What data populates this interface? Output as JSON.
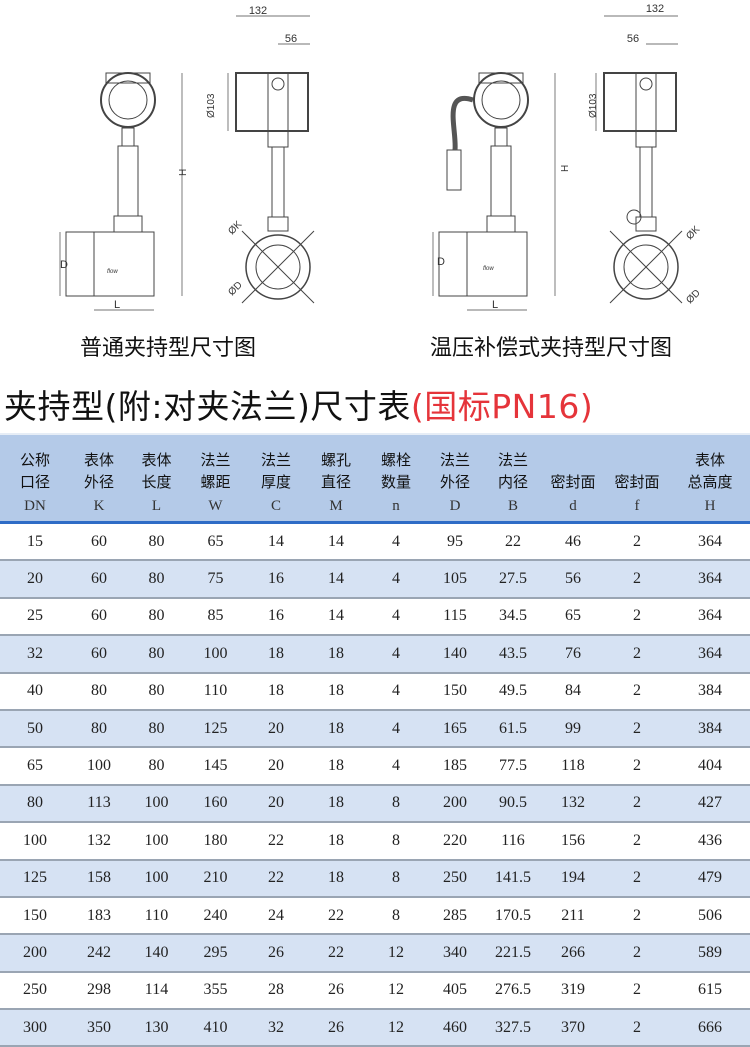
{
  "drawings": [
    {
      "caption": "普通夹持型尺寸图",
      "dims": {
        "width": "132",
        "offset": "56",
        "head_dia": "Ø103",
        "height": "H",
        "body_dia": "D",
        "length": "L",
        "k": "ØK",
        "d": "ØD"
      },
      "flow_label": "flow"
    },
    {
      "caption": "温压补偿式夹持型尺寸图",
      "dims": {
        "width": "132",
        "offset": "56",
        "head_dia": "Ø103",
        "height": "H",
        "body_dia": "D",
        "length": "L",
        "k": "ØK",
        "d": "ØD"
      },
      "flow_label": "flow"
    }
  ],
  "title": {
    "main": "夹持型(附:对夹法兰)尺寸表",
    "standard": "(国标PN16)"
  },
  "colors": {
    "header_bg": "#b4cae8",
    "header_rule": "#2e6cc6",
    "row_alt": "#d6e2f3",
    "standard_red": "#e5343a"
  },
  "table": {
    "columns": [
      {
        "line1": "公称",
        "line2": "口径",
        "sym": "DN"
      },
      {
        "line1": "表体",
        "line2": "外径",
        "sym": "K"
      },
      {
        "line1": "表体",
        "line2": "长度",
        "sym": "L"
      },
      {
        "line1": "法兰",
        "line2": "螺距",
        "sym": "W"
      },
      {
        "line1": "法兰",
        "line2": "厚度",
        "sym": "C"
      },
      {
        "line1": "螺孔",
        "line2": "直径",
        "sym": "M"
      },
      {
        "line1": "螺栓",
        "line2": "数量",
        "sym": "n"
      },
      {
        "line1": "法兰",
        "line2": "外径",
        "sym": "D"
      },
      {
        "line1": "法兰",
        "line2": "内径",
        "sym": "B"
      },
      {
        "line1": "",
        "line2": "密封面",
        "sym": "d"
      },
      {
        "line1": "",
        "line2": "密封面",
        "sym": "f"
      },
      {
        "line1": "表体",
        "line2": "总高度",
        "sym": "H"
      }
    ],
    "rows": [
      [
        "15",
        "60",
        "80",
        "65",
        "14",
        "14",
        "4",
        "95",
        "22",
        "46",
        "2",
        "364"
      ],
      [
        "20",
        "60",
        "80",
        "75",
        "16",
        "14",
        "4",
        "105",
        "27.5",
        "56",
        "2",
        "364"
      ],
      [
        "25",
        "60",
        "80",
        "85",
        "16",
        "14",
        "4",
        "115",
        "34.5",
        "65",
        "2",
        "364"
      ],
      [
        "32",
        "60",
        "80",
        "100",
        "18",
        "18",
        "4",
        "140",
        "43.5",
        "76",
        "2",
        "364"
      ],
      [
        "40",
        "80",
        "80",
        "110",
        "18",
        "18",
        "4",
        "150",
        "49.5",
        "84",
        "2",
        "384"
      ],
      [
        "50",
        "80",
        "80",
        "125",
        "20",
        "18",
        "4",
        "165",
        "61.5",
        "99",
        "2",
        "384"
      ],
      [
        "65",
        "100",
        "80",
        "145",
        "20",
        "18",
        "4",
        "185",
        "77.5",
        "118",
        "2",
        "404"
      ],
      [
        "80",
        "113",
        "100",
        "160",
        "20",
        "18",
        "8",
        "200",
        "90.5",
        "132",
        "2",
        "427"
      ],
      [
        "100",
        "132",
        "100",
        "180",
        "22",
        "18",
        "8",
        "220",
        "116",
        "156",
        "2",
        "436"
      ],
      [
        "125",
        "158",
        "100",
        "210",
        "22",
        "18",
        "8",
        "250",
        "141.5",
        "194",
        "2",
        "479"
      ],
      [
        "150",
        "183",
        "110",
        "240",
        "24",
        "22",
        "8",
        "285",
        "170.5",
        "211",
        "2",
        "506"
      ],
      [
        "200",
        "242",
        "140",
        "295",
        "26",
        "22",
        "12",
        "340",
        "221.5",
        "266",
        "2",
        "589"
      ],
      [
        "250",
        "298",
        "114",
        "355",
        "28",
        "26",
        "12",
        "405",
        "276.5",
        "319",
        "2",
        "615"
      ],
      [
        "300",
        "350",
        "130",
        "410",
        "32",
        "26",
        "12",
        "460",
        "327.5",
        "370",
        "2",
        "666"
      ]
    ]
  }
}
